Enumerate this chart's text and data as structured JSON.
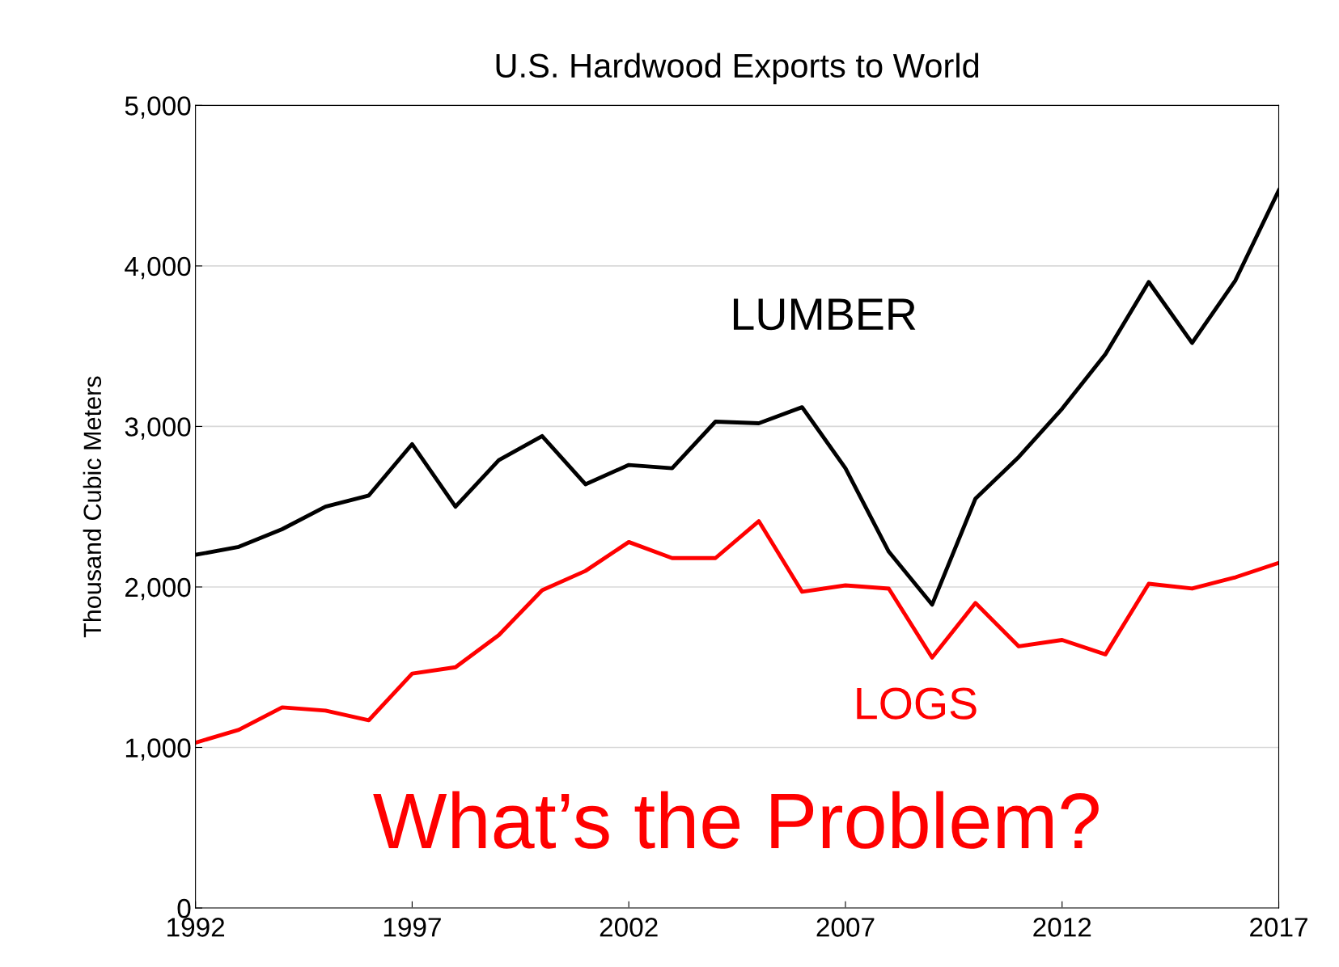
{
  "chart_data": {
    "type": "line",
    "title": "U.S. Hardwood Exports to World",
    "ylabel": "Thousand Cubic Meters",
    "x": [
      1992,
      1993,
      1994,
      1995,
      1996,
      1997,
      1998,
      1999,
      2000,
      2001,
      2002,
      2003,
      2004,
      2005,
      2006,
      2007,
      2008,
      2009,
      2010,
      2011,
      2012,
      2013,
      2014,
      2015,
      2016,
      2017
    ],
    "series": [
      {
        "name": "LUMBER",
        "color": "#000000",
        "values": [
          2200,
          2250,
          2360,
          2500,
          2570,
          2890,
          2500,
          2790,
          2940,
          2640,
          2760,
          2740,
          3030,
          3020,
          3120,
          2740,
          2220,
          1890,
          2550,
          2810,
          3110,
          3450,
          3900,
          3520,
          3910,
          4470
        ]
      },
      {
        "name": "LOGS",
        "color": "#ff0000",
        "values": [
          1030,
          1110,
          1250,
          1230,
          1170,
          1460,
          1500,
          1700,
          1980,
          2100,
          2280,
          2180,
          2180,
          2410,
          1970,
          2010,
          1990,
          1560,
          1900,
          1630,
          1670,
          1580,
          2020,
          1990,
          2060,
          2150
        ]
      }
    ],
    "annotations": [
      "What’s the Problem?"
    ],
    "xlim": [
      1992,
      2017
    ],
    "xticks": [
      1992,
      1997,
      2002,
      2007,
      2012,
      2017
    ],
    "ylim": [
      0,
      5000
    ],
    "yticks": [
      {
        "value": 0,
        "label": "0"
      },
      {
        "value": 1000,
        "label": "1,000"
      },
      {
        "value": 2000,
        "label": "2,000"
      },
      {
        "value": 3000,
        "label": "3,000"
      },
      {
        "value": 4000,
        "label": "4,000"
      },
      {
        "value": 5000,
        "label": "5,000"
      }
    ],
    "grid": "y",
    "marker": "none",
    "line_style": "solid",
    "legend": false
  }
}
